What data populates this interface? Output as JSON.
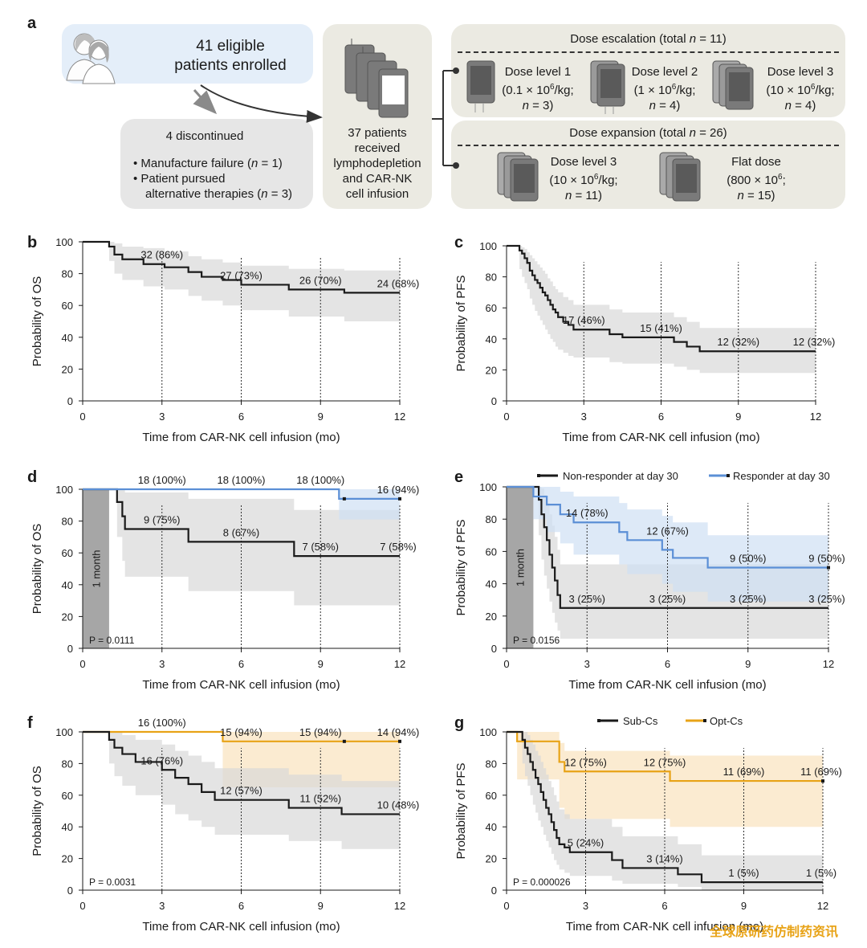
{
  "flow": {
    "panel_label": "a",
    "enrolled": {
      "line1": "41 eligible",
      "line2": "patients enrolled"
    },
    "discontinued": {
      "title": "4 discontinued",
      "items": [
        {
          "pre": "Manufacture failure (",
          "ital": "n",
          "post": " = 1)"
        },
        {
          "pre": "Patient pursued",
          "ital": "",
          "post": ""
        },
        {
          "pre": "alternative therapies (",
          "ital": "n",
          "post": " = 3)"
        }
      ]
    },
    "received": {
      "lines": [
        "37 patients",
        "received",
        "lymphodepletion",
        "and CAR-NK",
        "cell infusion"
      ]
    },
    "escalation": {
      "title_pre": "Dose escalation (total ",
      "title_ital": "n",
      "title_post": " = 11)",
      "levels": [
        {
          "name": "Dose level 1",
          "dose_pre": "(0.1 × 10",
          "dose_sup": "6",
          "dose_post": "/kg;",
          "n_ital": "n",
          "n_post": " = 3)"
        },
        {
          "name": "Dose level 2",
          "dose_pre": "(1 × 10",
          "dose_sup": "6",
          "dose_post": "/kg;",
          "n_ital": "n",
          "n_post": " = 4)"
        },
        {
          "name": "Dose level 3",
          "dose_pre": "(10 × 10",
          "dose_sup": "6",
          "dose_post": "/kg;",
          "n_ital": "n",
          "n_post": " = 4)"
        }
      ]
    },
    "expansion": {
      "title_pre": "Dose expansion (total ",
      "title_ital": "n",
      "title_post": " = 26)",
      "levels": [
        {
          "name": "Dose level 3",
          "dose_pre": "(10 × 10",
          "dose_sup": "6",
          "dose_post": "/kg;",
          "n_ital": "n",
          "n_post": " = 11)"
        },
        {
          "name": "Flat dose",
          "dose_pre": "(800 × 10",
          "dose_sup": "6",
          "dose_post": ";",
          "n_ital": "n",
          "n_post": " = 15)"
        }
      ]
    }
  },
  "colors": {
    "black": "#1a1a1a",
    "blue": "#5b8fd6",
    "orange": "#e8a317",
    "gray_ci": "#d9d9d9",
    "blue_ci": "#cfdff4",
    "orange_ci": "#f9e3bd",
    "box_blue": "#e4eef9",
    "box_gray": "#e6e6e6",
    "box_beige": "#ebeae2"
  },
  "chart_data": [
    {
      "panel": "b",
      "type": "line",
      "xlabel": "Time from CAR-NK cell infusion (mo)",
      "ylabel": "Probability of OS",
      "xlim": [
        0,
        12
      ],
      "ylim": [
        0,
        100
      ],
      "xticks": [
        0,
        3,
        6,
        9,
        12
      ],
      "yticks": [
        0,
        20,
        40,
        60,
        80,
        100
      ],
      "series": [
        {
          "name": "All",
          "color": "#1a1a1a",
          "x": [
            0,
            1,
            1.2,
            1.5,
            2.3,
            3.1,
            4.0,
            4.5,
            5.3,
            6.0,
            6.5,
            7.0,
            7.8,
            9.9,
            12
          ],
          "y": [
            100,
            97,
            92,
            89,
            86,
            84,
            81,
            78,
            76,
            73,
            73,
            73,
            70,
            68,
            68
          ],
          "ci_upper": [
            100,
            100,
            99,
            97,
            96,
            94,
            91,
            89,
            87,
            85,
            85,
            85,
            83,
            82,
            82
          ],
          "ci_lower": [
            100,
            88,
            80,
            76,
            72,
            70,
            66,
            63,
            60,
            57,
            57,
            57,
            53,
            50,
            50
          ]
        }
      ],
      "annotations": [
        {
          "x": 3,
          "y": 86,
          "label": "32 (86%)"
        },
        {
          "x": 6,
          "y": 73,
          "label": "27 (73%)"
        },
        {
          "x": 9,
          "y": 70,
          "label": "26 (70%)"
        },
        {
          "x": 12,
          "y": 68,
          "label": "24 (68%)"
        }
      ]
    },
    {
      "panel": "c",
      "type": "line",
      "xlabel": "Time from CAR-NK cell infusion (mo)",
      "ylabel": "Probability of PFS",
      "xlim": [
        0,
        12
      ],
      "ylim": [
        0,
        100
      ],
      "xticks": [
        0,
        3,
        6,
        9,
        12
      ],
      "yticks": [
        0,
        20,
        40,
        60,
        80,
        100
      ],
      "series": [
        {
          "name": "All",
          "color": "#1a1a1a",
          "x": [
            0,
            0.5,
            0.6,
            0.7,
            0.8,
            0.9,
            1.0,
            1.1,
            1.2,
            1.3,
            1.4,
            1.5,
            1.6,
            1.7,
            1.8,
            1.9,
            2.0,
            2.2,
            2.4,
            2.6,
            3.5,
            4.0,
            4.5,
            6.0,
            6.5,
            7.0,
            7.5,
            12
          ],
          "y": [
            100,
            97,
            95,
            92,
            89,
            84,
            81,
            78,
            76,
            73,
            70,
            68,
            65,
            62,
            59,
            57,
            54,
            51,
            49,
            46,
            46,
            43,
            41,
            41,
            38,
            35,
            32,
            32
          ],
          "ci_upper": [
            100,
            100,
            99,
            98,
            96,
            94,
            92,
            90,
            88,
            86,
            84,
            82,
            79,
            77,
            74,
            72,
            70,
            67,
            65,
            62,
            62,
            59,
            57,
            57,
            54,
            51,
            47,
            47
          ],
          "ci_lower": [
            100,
            85,
            80,
            76,
            72,
            66,
            62,
            58,
            55,
            52,
            49,
            46,
            43,
            40,
            38,
            35,
            33,
            31,
            29,
            28,
            28,
            25,
            24,
            24,
            22,
            20,
            18,
            18
          ]
        }
      ],
      "annotations": [
        {
          "x": 3,
          "y": 46,
          "label": "17 (46%)"
        },
        {
          "x": 6,
          "y": 41,
          "label": "15 (41%)"
        },
        {
          "x": 9,
          "y": 32,
          "label": "12 (32%)"
        },
        {
          "x": 12,
          "y": 32,
          "label": "12 (32%)"
        }
      ]
    },
    {
      "panel": "d",
      "type": "line",
      "xlabel": "Time from CAR-NK cell infusion (mo)",
      "ylabel": "Probability of OS",
      "xlim": [
        0,
        12
      ],
      "ylim": [
        0,
        100
      ],
      "xticks": [
        0,
        3,
        6,
        9,
        12
      ],
      "yticks": [
        0,
        20,
        40,
        60,
        80,
        100
      ],
      "shade_label": "1 month",
      "shade_x": [
        0,
        1
      ],
      "pvalue": "P = 0.0111",
      "series": [
        {
          "name": "Non-responder at day 30",
          "color": "#1a1a1a",
          "x": [
            0,
            1.3,
            1.5,
            1.6,
            4.0,
            8.0,
            12
          ],
          "y": [
            100,
            92,
            83,
            75,
            67,
            58,
            58
          ],
          "ci_upper": [
            100,
            100,
            100,
            98,
            94,
            87,
            87
          ],
          "ci_lower": [
            100,
            70,
            55,
            45,
            36,
            27,
            27
          ]
        },
        {
          "name": "Responder at day 30",
          "color": "#5b8fd6",
          "x": [
            0,
            9.7,
            12
          ],
          "y": [
            100,
            94,
            94
          ],
          "ci_upper": [
            100,
            100,
            100
          ],
          "ci_lower": [
            100,
            81,
            81
          ],
          "censor_x": [
            9.9,
            12
          ]
        }
      ],
      "annotations": [
        {
          "x": 3,
          "y": 100,
          "label": "18 (100%)"
        },
        {
          "x": 6,
          "y": 100,
          "label": "18 (100%)"
        },
        {
          "x": 9,
          "y": 100,
          "label": "18 (100%)"
        },
        {
          "x": 12,
          "y": 94,
          "label": "16 (94%)"
        },
        {
          "x": 3,
          "y": 75,
          "label": "9 (75%)"
        },
        {
          "x": 6,
          "y": 67,
          "label": "8 (67%)"
        },
        {
          "x": 9,
          "y": 58,
          "label": "7 (58%)"
        },
        {
          "x": 12,
          "y": 58,
          "label": "7 (58%)"
        }
      ]
    },
    {
      "panel": "e",
      "type": "line",
      "xlabel": "Time from CAR-NK cell infusion (mo)",
      "ylabel": "Probability of PFS",
      "xlim": [
        0,
        12
      ],
      "ylim": [
        0,
        100
      ],
      "xticks": [
        0,
        3,
        6,
        9,
        12
      ],
      "yticks": [
        0,
        20,
        40,
        60,
        80,
        100
      ],
      "shade_label": "1 month",
      "shade_x": [
        0,
        1
      ],
      "pvalue": "P = 0.0156",
      "legend": [
        "Non-responder at day 30",
        "Responder at day 30"
      ],
      "series": [
        {
          "name": "Non-responder at day 30",
          "color": "#1a1a1a",
          "x": [
            0,
            1.2,
            1.3,
            1.4,
            1.5,
            1.6,
            1.7,
            1.8,
            1.9,
            2.0,
            12
          ],
          "y": [
            100,
            92,
            83,
            75,
            67,
            58,
            50,
            42,
            33,
            25,
            25
          ],
          "ci_upper": [
            100,
            100,
            99,
            95,
            90,
            83,
            76,
            69,
            61,
            52,
            52
          ],
          "ci_lower": [
            100,
            70,
            55,
            45,
            37,
            29,
            22,
            16,
            11,
            6,
            6
          ]
        },
        {
          "name": "Responder at day 30",
          "color": "#5b8fd6",
          "x": [
            0,
            1.0,
            1.5,
            2.0,
            2.5,
            4.2,
            4.5,
            5.8,
            6.2,
            6.5,
            7.5,
            12
          ],
          "y": [
            100,
            94,
            89,
            83,
            78,
            72,
            67,
            61,
            56,
            56,
            50,
            50
          ],
          "ci_upper": [
            100,
            100,
            100,
            97,
            94,
            90,
            86,
            82,
            78,
            78,
            70,
            70
          ],
          "ci_lower": [
            100,
            80,
            72,
            65,
            58,
            52,
            46,
            40,
            35,
            35,
            29,
            29
          ],
          "censor_x": [
            12
          ]
        }
      ],
      "annotations": [
        {
          "x": 3,
          "y": 78,
          "label": "14 (78%)"
        },
        {
          "x": 6,
          "y": 67,
          "label": "12 (67%)"
        },
        {
          "x": 9,
          "y": 50,
          "label": "9 (50%)"
        },
        {
          "x": 12,
          "y": 50,
          "label": "9 (50%)"
        },
        {
          "x": 3,
          "y": 25,
          "label": "3 (25%)"
        },
        {
          "x": 6,
          "y": 25,
          "label": "3 (25%)"
        },
        {
          "x": 9,
          "y": 25,
          "label": "3 (25%)"
        },
        {
          "x": 12,
          "y": 25,
          "label": "3 (25%)"
        }
      ]
    },
    {
      "panel": "f",
      "type": "line",
      "xlabel": "Time from CAR-NK cell infusion (mo)",
      "ylabel": "Probability of OS",
      "xlim": [
        0,
        12
      ],
      "ylim": [
        0,
        100
      ],
      "xticks": [
        0,
        3,
        6,
        9,
        12
      ],
      "yticks": [
        0,
        20,
        40,
        60,
        80,
        100
      ],
      "pvalue": "P = 0.0031",
      "series": [
        {
          "name": "Opt-Cs",
          "color": "#e8a317",
          "x": [
            0,
            5.3,
            12
          ],
          "y": [
            100,
            94,
            94
          ],
          "ci_upper": [
            100,
            100,
            100
          ],
          "ci_lower": [
            100,
            65,
            65
          ],
          "censor_x": [
            9.9,
            12
          ]
        },
        {
          "name": "Sub-Cs",
          "color": "#1a1a1a",
          "x": [
            0,
            1.0,
            1.2,
            1.5,
            2.0,
            2.5,
            3.0,
            3.5,
            4.0,
            4.5,
            5.0,
            6.5,
            7.8,
            9.8,
            12
          ],
          "y": [
            100,
            95,
            90,
            86,
            81,
            81,
            76,
            71,
            67,
            62,
            57,
            57,
            52,
            48,
            48
          ],
          "ci_upper": [
            100,
            100,
            100,
            98,
            95,
            95,
            92,
            88,
            85,
            81,
            77,
            77,
            73,
            69,
            69
          ],
          "ci_lower": [
            100,
            80,
            72,
            66,
            60,
            60,
            54,
            48,
            44,
            40,
            35,
            35,
            31,
            26,
            26
          ]
        }
      ],
      "annotations": [
        {
          "x": 3,
          "y": 100,
          "label": "16 (100%)"
        },
        {
          "x": 6,
          "y": 94,
          "label": "15 (94%)"
        },
        {
          "x": 9,
          "y": 94,
          "label": "15 (94%)"
        },
        {
          "x": 12,
          "y": 94,
          "label": "14 (94%)"
        },
        {
          "x": 3,
          "y": 76,
          "label": "16 (76%)"
        },
        {
          "x": 6,
          "y": 57,
          "label": "12 (57%)"
        },
        {
          "x": 9,
          "y": 52,
          "label": "11 (52%)"
        },
        {
          "x": 12,
          "y": 48,
          "label": "10 (48%)"
        }
      ]
    },
    {
      "panel": "g",
      "type": "line",
      "xlabel": "Time from CAR-NK cell infusion (mo)",
      "ylabel": "Probability of PFS",
      "xlim": [
        0,
        12
      ],
      "ylim": [
        0,
        100
      ],
      "xticks": [
        0,
        3,
        6,
        9,
        12
      ],
      "yticks": [
        0,
        20,
        40,
        60,
        80,
        100
      ],
      "pvalue": "P = 0.000026",
      "legend": [
        "Sub-Cs",
        "Opt-Cs"
      ],
      "series": [
        {
          "name": "Opt-Cs",
          "color": "#e8a317",
          "x": [
            0,
            0.4,
            1.0,
            2.0,
            2.2,
            6.2,
            12
          ],
          "y": [
            100,
            94,
            94,
            81,
            75,
            69,
            69
          ],
          "ci_upper": [
            100,
            100,
            100,
            93,
            88,
            85,
            85
          ],
          "ci_lower": [
            100,
            70,
            70,
            52,
            45,
            40,
            40
          ],
          "censor_x": [
            12
          ]
        },
        {
          "name": "Sub-Cs",
          "color": "#1a1a1a",
          "x": [
            0,
            0.6,
            0.7,
            0.8,
            0.9,
            1.0,
            1.1,
            1.2,
            1.3,
            1.4,
            1.5,
            1.6,
            1.7,
            1.8,
            1.9,
            2.0,
            2.2,
            2.4,
            4.0,
            4.4,
            6.5,
            7.4,
            12
          ],
          "y": [
            100,
            95,
            90,
            86,
            81,
            76,
            71,
            67,
            62,
            57,
            52,
            48,
            43,
            38,
            33,
            29,
            27,
            24,
            19,
            14,
            10,
            5,
            5
          ],
          "ci_upper": [
            100,
            100,
            100,
            98,
            95,
            92,
            88,
            85,
            81,
            77,
            73,
            69,
            65,
            60,
            56,
            51,
            48,
            45,
            40,
            34,
            29,
            22,
            22
          ],
          "ci_lower": [
            100,
            80,
            72,
            66,
            60,
            54,
            49,
            44,
            40,
            35,
            31,
            27,
            23,
            19,
            16,
            13,
            11,
            9,
            6,
            4,
            2,
            0,
            0
          ]
        }
      ],
      "annotations": [
        {
          "x": 3,
          "y": 75,
          "label": "12 (75%)"
        },
        {
          "x": 6,
          "y": 75,
          "label": "12 (75%)"
        },
        {
          "x": 9,
          "y": 69,
          "label": "11 (69%)"
        },
        {
          "x": 12,
          "y": 69,
          "label": "11 (69%)"
        },
        {
          "x": 3,
          "y": 24,
          "label": "5 (24%)"
        },
        {
          "x": 6,
          "y": 14,
          "label": "3 (14%)"
        },
        {
          "x": 9,
          "y": 5,
          "label": "1 (5%)"
        },
        {
          "x": 12,
          "y": 5,
          "label": "1 (5%)"
        }
      ]
    }
  ],
  "watermark": "全球原研药仿制药资讯",
  "footer_fragment": "infusion (mo)"
}
